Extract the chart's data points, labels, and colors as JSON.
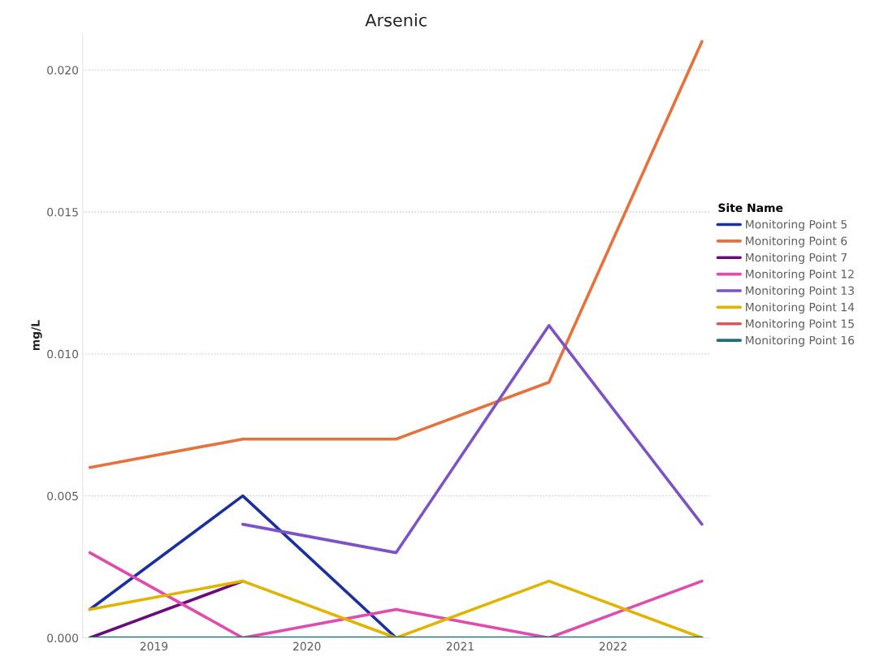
{
  "chart_data": {
    "type": "line",
    "title": "Arsenic",
    "ylabel": "mg/L",
    "legend_title": "Site Name",
    "x": [
      "2018-08",
      "2019-08",
      "2020-08",
      "2021-08",
      "2022-08"
    ],
    "series": [
      {
        "name": "Monitoring Point 5",
        "color": "#1a2fa0",
        "values": [
          0.001,
          0.005,
          0,
          null,
          null
        ]
      },
      {
        "name": "Monitoring Point 6",
        "color": "#e8703a",
        "values": [
          0.006,
          0.007,
          0.007,
          0.009,
          0.021
        ]
      },
      {
        "name": "Monitoring Point 7",
        "color": "#6b0a7a",
        "values": [
          0,
          0.002,
          null,
          null,
          null
        ]
      },
      {
        "name": "Monitoring Point 12",
        "color": "#e44aad",
        "values": [
          0.003,
          0,
          0.001,
          0,
          0.002
        ]
      },
      {
        "name": "Monitoring Point 13",
        "color": "#7d52c8",
        "values": [
          null,
          0.004,
          0.003,
          0.011,
          0.004
        ]
      },
      {
        "name": "Monitoring Point 14",
        "color": "#e0b400",
        "values": [
          0.001,
          0.002,
          0,
          0.002,
          0
        ]
      },
      {
        "name": "Monitoring Point 15",
        "color": "#e05555",
        "values": [
          null,
          null,
          null,
          null,
          null
        ]
      },
      {
        "name": "Monitoring Point 16",
        "color": "#197278",
        "values": [
          0,
          0,
          0,
          0,
          0
        ]
      }
    ],
    "xlim": [
      "2018-07-15",
      "2022-08-20"
    ],
    "xticks": [
      {
        "value": "2019-01-01",
        "label": "2019"
      },
      {
        "value": "2020-01-01",
        "label": "2020"
      },
      {
        "value": "2021-01-01",
        "label": "2021"
      },
      {
        "value": "2022-01-01",
        "label": "2022"
      }
    ],
    "ylim": [
      0,
      0.0213
    ],
    "yticks": [
      {
        "value": 0,
        "label": "0.000"
      },
      {
        "value": 0.005,
        "label": "0.005"
      },
      {
        "value": 0.01,
        "label": "0.010"
      },
      {
        "value": 0.015,
        "label": "0.015"
      },
      {
        "value": 0.02,
        "label": "0.020"
      }
    ],
    "grid": "y",
    "legend": "right",
    "marker": "none",
    "line_style": "solid"
  }
}
